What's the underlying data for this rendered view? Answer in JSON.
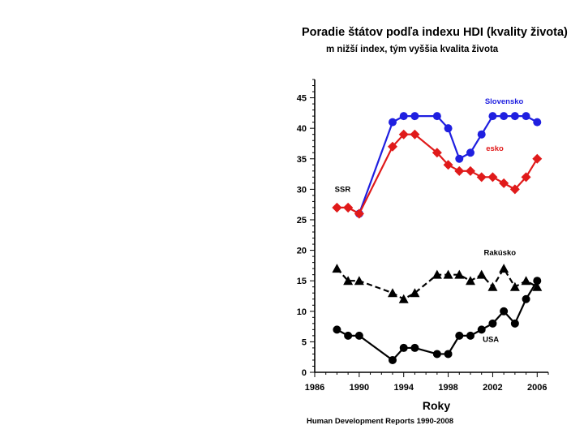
{
  "chart_data": {
    "type": "line",
    "title": "Poradie štátov podľa indexu HDI (kvality života)",
    "subtitle": "m nižší index, tým vyššia kvalita života",
    "xlabel": "Roky",
    "ylabel": "",
    "source": "Human Development Reports 1990-2008",
    "xlim": [
      1986,
      2007
    ],
    "ylim": [
      0,
      48
    ],
    "xticks": [
      1986,
      1990,
      1994,
      1998,
      2002,
      2006
    ],
    "yticks": [
      0,
      5,
      10,
      15,
      20,
      25,
      30,
      35,
      40,
      45
    ],
    "series": [
      {
        "name": "Slovensko",
        "color": "#1f1fe0",
        "marker": "circle",
        "line": "solid",
        "points": [
          [
            1990,
            26
          ],
          [
            1993,
            41
          ],
          [
            1994,
            42
          ],
          [
            1995,
            42
          ],
          [
            1997,
            42
          ],
          [
            1998,
            40
          ],
          [
            1999,
            35
          ],
          [
            2000,
            36
          ],
          [
            2001,
            39
          ],
          [
            2002,
            42
          ],
          [
            2003,
            42
          ],
          [
            2004,
            42
          ],
          [
            2005,
            42
          ],
          [
            2006,
            41
          ]
        ]
      },
      {
        "name": "esko",
        "color": "#e01a1a",
        "marker": "diamond",
        "line": "solid",
        "points": [
          [
            1988,
            27
          ],
          [
            1989,
            27
          ],
          [
            1990,
            26
          ],
          [
            1993,
            37
          ],
          [
            1994,
            39
          ],
          [
            1995,
            39
          ],
          [
            1997,
            36
          ],
          [
            1998,
            34
          ],
          [
            1999,
            33
          ],
          [
            2000,
            33
          ],
          [
            2001,
            32
          ],
          [
            2002,
            32
          ],
          [
            2003,
            31
          ],
          [
            2004,
            30
          ],
          [
            2005,
            32
          ],
          [
            2006,
            35
          ]
        ]
      },
      {
        "name": "SSR",
        "color": "#e01a1a",
        "marker": "diamond",
        "line": "solid",
        "points": [
          [
            1988,
            27
          ],
          [
            1989,
            27
          ],
          [
            1990,
            26
          ]
        ]
      },
      {
        "name": "Rakúsko",
        "color": "#000000",
        "marker": "triangle",
        "line": "dashed",
        "points": [
          [
            1988,
            17
          ],
          [
            1989,
            15
          ],
          [
            1990,
            15
          ],
          [
            1993,
            13
          ],
          [
            1994,
            12
          ],
          [
            1995,
            13
          ],
          [
            1997,
            16
          ],
          [
            1998,
            16
          ],
          [
            1999,
            16
          ],
          [
            2000,
            15
          ],
          [
            2001,
            16
          ],
          [
            2002,
            14
          ],
          [
            2003,
            17
          ],
          [
            2004,
            14
          ],
          [
            2005,
            15
          ],
          [
            2006,
            14
          ]
        ]
      },
      {
        "name": "USA",
        "color": "#000000",
        "marker": "circle",
        "line": "solid",
        "points": [
          [
            1988,
            7
          ],
          [
            1989,
            6
          ],
          [
            1990,
            6
          ],
          [
            1993,
            2
          ],
          [
            1994,
            4
          ],
          [
            1995,
            4
          ],
          [
            1997,
            3
          ],
          [
            1998,
            3
          ],
          [
            1999,
            6
          ],
          [
            2000,
            6
          ],
          [
            2001,
            7
          ],
          [
            2002,
            8
          ],
          [
            2003,
            10
          ],
          [
            2004,
            8
          ],
          [
            2005,
            12
          ],
          [
            2006,
            15
          ]
        ]
      }
    ],
    "labels": [
      {
        "text": "Slovensko",
        "color": "#1f1fe0",
        "x": 2001.3,
        "y": 44
      },
      {
        "text": "esko",
        "color": "#e01a1a",
        "x": 2001.4,
        "y": 36.3
      },
      {
        "text": "SSR",
        "color": "#000000",
        "x": 1987.8,
        "y": 29.6
      },
      {
        "text": "Rakúsko",
        "color": "#000000",
        "x": 2001.2,
        "y": 19.2
      },
      {
        "text": "USA",
        "color": "#000000",
        "x": 2001.1,
        "y": 5
      }
    ]
  }
}
